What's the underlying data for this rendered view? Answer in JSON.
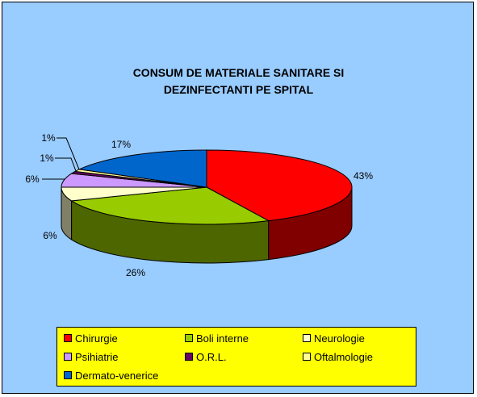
{
  "chart_data": {
    "type": "pie",
    "title": [
      "CONSUM DE MATERIALE SANITARE SI",
      "DEZINFECTANTI  PE SPITAL"
    ],
    "legend_position": "bottom",
    "slices": [
      {
        "name": "Chirurgie",
        "percent": 43,
        "label": "43%",
        "color": "#ff0000",
        "side": "#800000"
      },
      {
        "name": "Boli interne",
        "percent": 26,
        "label": "26%",
        "color": "#99cc00",
        "side": "#4d6600"
      },
      {
        "name": "Neurologie",
        "percent": 6,
        "label": "6%",
        "color": "#ffffcc",
        "side": "#808066"
      },
      {
        "name": "Psihiatrie",
        "percent": 6,
        "label": "6%",
        "color": "#cc99ff",
        "side": "#664d80"
      },
      {
        "name": "O.R.L.",
        "percent": 1,
        "label": "1%",
        "color": "#660066",
        "side": "#330033"
      },
      {
        "name": "Oftalmologie",
        "percent": 1,
        "label": "1%",
        "color": "#ffff99",
        "side": "#80804d"
      },
      {
        "name": "Dermato-venerice",
        "percent": 17,
        "label": "17%",
        "color": "#0066cc",
        "side": "#003366"
      }
    ]
  }
}
